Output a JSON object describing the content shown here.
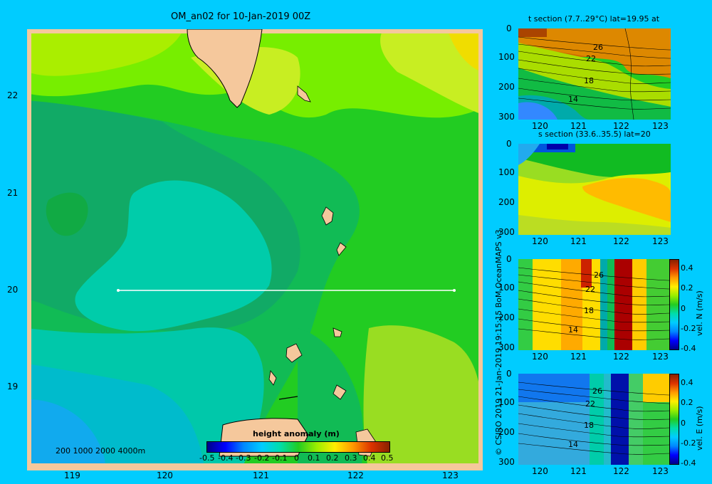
{
  "map": {
    "title": "OM_an02 for 10-Jan-2019 00Z",
    "x_ticks": [
      "119",
      "120",
      "121",
      "122",
      "123"
    ],
    "y_ticks": [
      "22",
      "21",
      "20",
      "19"
    ],
    "section_latitude": 20,
    "section_lon_range": [
      119.5,
      123.2
    ],
    "depth_legend": "200  1000  2000  4000m",
    "colorbar_label": "height anomaly (m)",
    "colorbar_ticks": [
      "-0.5",
      "-0.4",
      "-0.3",
      "-0.2",
      "-0.1",
      "0",
      "0.1",
      "0.2",
      "0.3",
      "0.4",
      "0.5"
    ]
  },
  "credit": "© CSIRO 2019   21-Jan-2019 19:15:15 BoM OceanMAPS v3",
  "panels": [
    {
      "title": "t section (7.7..29°C) lat=19.95 at",
      "contour_labels": [
        "26",
        "22",
        "18",
        "14"
      ]
    },
    {
      "title": "s section (33.6..35.5) lat=20",
      "contour_labels": []
    },
    {
      "title": "",
      "contour_labels": [
        "26",
        "22",
        "18",
        "14"
      ],
      "colorbar_label": "vel. N (m/s)",
      "colorbar_ticks": [
        "0.4",
        "0.2",
        "0",
        "-0.2",
        "-0.4"
      ]
    },
    {
      "title": "",
      "contour_labels": [
        "26",
        "22",
        "18",
        "14"
      ],
      "colorbar_label": "vel. E (m/s)",
      "colorbar_ticks": [
        "0.4",
        "0.2",
        "0",
        "-0.2",
        "-0.4"
      ]
    }
  ],
  "panel_axes": {
    "x_ticks": [
      "120",
      "121",
      "122",
      "123"
    ],
    "y_ticks": [
      "0",
      "100",
      "200",
      "300"
    ]
  },
  "colors": {
    "background": "#00ccff",
    "land": "#f5c89c",
    "section_line": "#ffffff"
  },
  "chart_data": [
    {
      "type": "heatmap",
      "variable": "sea surface height anomaly",
      "units": "m",
      "xlim": [
        118.5,
        123.5
      ],
      "ylim": [
        18.3,
        22.7
      ],
      "clim": [
        -0.5,
        0.5
      ]
    },
    {
      "type": "heatmap",
      "variable": "temperature",
      "units": "°C",
      "range": [
        7.7,
        29
      ],
      "xlim": [
        119.5,
        123.2
      ],
      "ylim_depth": [
        0,
        300
      ]
    },
    {
      "type": "heatmap",
      "variable": "salinity",
      "range": [
        33.6,
        35.5
      ],
      "xlim": [
        119.5,
        123.2
      ],
      "ylim_depth": [
        0,
        300
      ]
    },
    {
      "type": "heatmap",
      "variable": "vel. N",
      "units": "m/s",
      "clim": [
        -0.4,
        0.4
      ],
      "xlim": [
        119.5,
        123.2
      ],
      "ylim_depth": [
        0,
        300
      ]
    },
    {
      "type": "heatmap",
      "variable": "vel. E",
      "units": "m/s",
      "clim": [
        -0.4,
        0.4
      ],
      "xlim": [
        119.5,
        123.2
      ],
      "ylim_depth": [
        0,
        300
      ]
    }
  ]
}
